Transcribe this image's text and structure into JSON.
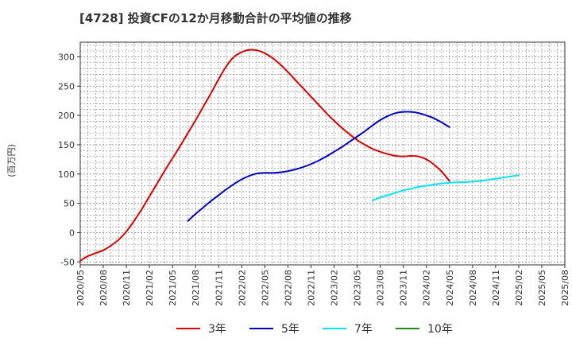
{
  "chart_data": {
    "type": "line",
    "title": "[4728]  投資CFの12か月移動合計の平均値の推移",
    "ylabel": "(百万円)",
    "xlabel": "",
    "ylim": [
      -55,
      325
    ],
    "yticks": [
      -50,
      0,
      50,
      100,
      150,
      200,
      250,
      300
    ],
    "xticks": [
      "2020/05",
      "2020/08",
      "2020/11",
      "2021/02",
      "2021/05",
      "2021/08",
      "2021/11",
      "2022/02",
      "2022/05",
      "2022/08",
      "2022/11",
      "2023/02",
      "2023/05",
      "2023/08",
      "2023/11",
      "2024/02",
      "2024/05",
      "2024/08",
      "2024/11",
      "2025/02",
      "2025/05",
      "2025/08"
    ],
    "grid": true,
    "legend_position": "bottom",
    "series": [
      {
        "name": "3年",
        "color": "#dd0000",
        "points": [
          [
            "2020/05",
            -48
          ],
          [
            "2020/06",
            -40
          ],
          [
            "2020/07",
            -35
          ],
          [
            "2020/08",
            -30
          ],
          [
            "2020/09",
            -22
          ],
          [
            "2020/10",
            -12
          ],
          [
            "2020/11",
            2
          ],
          [
            "2020/12",
            20
          ],
          [
            "2021/01",
            40
          ],
          [
            "2021/02",
            62
          ],
          [
            "2021/03",
            84
          ],
          [
            "2021/04",
            106
          ],
          [
            "2021/05",
            127
          ],
          [
            "2021/06",
            148
          ],
          [
            "2021/07",
            170
          ],
          [
            "2021/08",
            192
          ],
          [
            "2021/09",
            215
          ],
          [
            "2021/10",
            238
          ],
          [
            "2021/11",
            262
          ],
          [
            "2021/12",
            284
          ],
          [
            "2022/01",
            300
          ],
          [
            "2022/02",
            308
          ],
          [
            "2022/03",
            312
          ],
          [
            "2022/04",
            311
          ],
          [
            "2022/05",
            306
          ],
          [
            "2022/06",
            298
          ],
          [
            "2022/07",
            287
          ],
          [
            "2022/08",
            274
          ],
          [
            "2022/09",
            260
          ],
          [
            "2022/10",
            246
          ],
          [
            "2022/11",
            232
          ],
          [
            "2022/12",
            218
          ],
          [
            "2023/01",
            204
          ],
          [
            "2023/02",
            191
          ],
          [
            "2023/03",
            179
          ],
          [
            "2023/04",
            168
          ],
          [
            "2023/05",
            158
          ],
          [
            "2023/06",
            150
          ],
          [
            "2023/07",
            143
          ],
          [
            "2023/08",
            138
          ],
          [
            "2023/09",
            134
          ],
          [
            "2023/10",
            131
          ],
          [
            "2023/11",
            130
          ],
          [
            "2023/12",
            131
          ],
          [
            "2024/01",
            130
          ],
          [
            "2024/02",
            125
          ],
          [
            "2024/03",
            116
          ],
          [
            "2024/04",
            104
          ],
          [
            "2024/05",
            88
          ]
        ]
      },
      {
        "name": "5年",
        "color": "#0000cc",
        "points": [
          [
            "2021/07",
            20
          ],
          [
            "2021/08",
            32
          ],
          [
            "2021/09",
            43
          ],
          [
            "2021/10",
            54
          ],
          [
            "2021/11",
            64
          ],
          [
            "2021/12",
            74
          ],
          [
            "2022/01",
            83
          ],
          [
            "2022/02",
            91
          ],
          [
            "2022/03",
            97
          ],
          [
            "2022/04",
            101
          ],
          [
            "2022/05",
            102
          ],
          [
            "2022/06",
            102
          ],
          [
            "2022/07",
            103
          ],
          [
            "2022/08",
            105
          ],
          [
            "2022/09",
            108
          ],
          [
            "2022/10",
            112
          ],
          [
            "2022/11",
            117
          ],
          [
            "2022/12",
            123
          ],
          [
            "2023/01",
            130
          ],
          [
            "2023/02",
            138
          ],
          [
            "2023/03",
            146
          ],
          [
            "2023/04",
            155
          ],
          [
            "2023/05",
            164
          ],
          [
            "2023/06",
            173
          ],
          [
            "2023/07",
            183
          ],
          [
            "2023/08",
            192
          ],
          [
            "2023/09",
            199
          ],
          [
            "2023/10",
            204
          ],
          [
            "2023/11",
            206
          ],
          [
            "2023/12",
            206
          ],
          [
            "2024/01",
            204
          ],
          [
            "2024/02",
            200
          ],
          [
            "2024/03",
            195
          ],
          [
            "2024/04",
            188
          ],
          [
            "2024/05",
            180
          ]
        ]
      },
      {
        "name": "7年",
        "color": "#00e5ee",
        "points": [
          [
            "2023/07",
            55
          ],
          [
            "2023/08",
            60
          ],
          [
            "2023/09",
            64
          ],
          [
            "2023/10",
            68
          ],
          [
            "2023/11",
            72
          ],
          [
            "2023/12",
            75
          ],
          [
            "2024/01",
            78
          ],
          [
            "2024/02",
            80
          ],
          [
            "2024/03",
            82
          ],
          [
            "2024/04",
            84
          ],
          [
            "2024/05",
            85
          ],
          [
            "2024/06",
            86
          ],
          [
            "2024/07",
            86
          ],
          [
            "2024/08",
            87
          ],
          [
            "2024/09",
            88
          ],
          [
            "2024/10",
            90
          ],
          [
            "2024/11",
            92
          ],
          [
            "2024/12",
            94
          ],
          [
            "2025/01",
            96
          ],
          [
            "2025/02",
            98
          ]
        ]
      },
      {
        "name": "10年",
        "color": "#228b22",
        "points": []
      }
    ]
  }
}
